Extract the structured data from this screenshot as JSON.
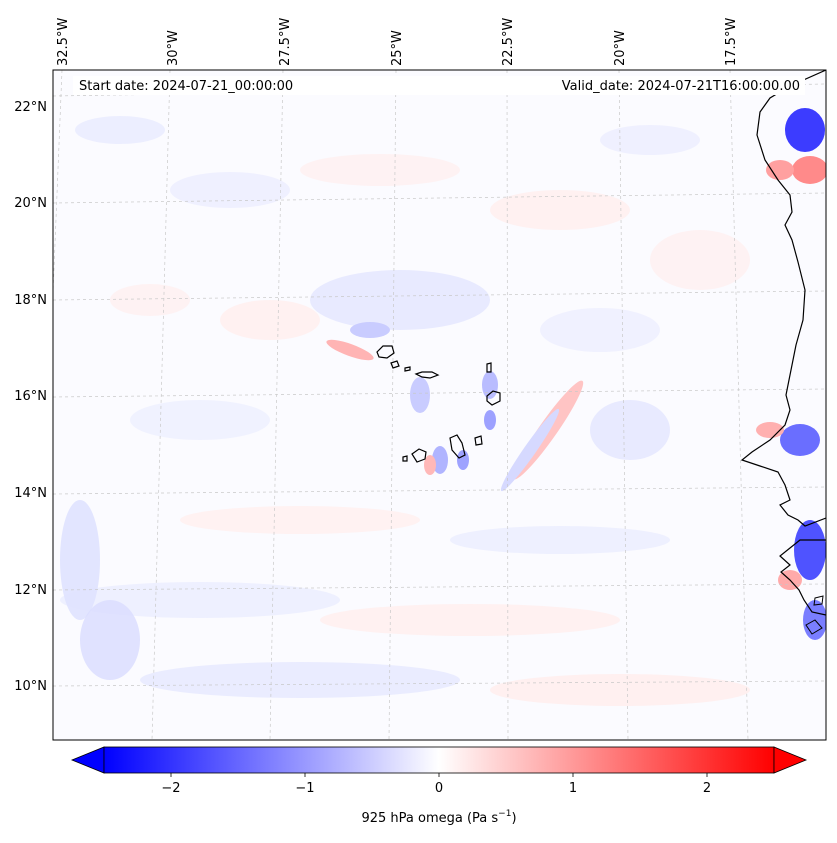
{
  "map": {
    "start_date_text": "Start date: 2024-07-21_00:00:00",
    "valid_date_text": "Valid_date: 2024-07-21T16:00:00.00",
    "lon_labels": [
      "32.5°W",
      "30°W",
      "27.5°W",
      "25°W",
      "22.5°W",
      "20°W",
      "17.5°W"
    ],
    "lat_labels": [
      "22°N",
      "20°N",
      "18°N",
      "16°N",
      "14°N",
      "12°N",
      "10°N"
    ]
  },
  "colorbar": {
    "ticks": [
      "−2",
      "−1",
      "0",
      "1",
      "2"
    ],
    "label_main": "925 hPa omega (Pa s",
    "label_sup": "−1",
    "label_end": ")",
    "min_color": "#0000ff",
    "mid_color": "#ffffff",
    "max_color": "#ff0000"
  }
}
